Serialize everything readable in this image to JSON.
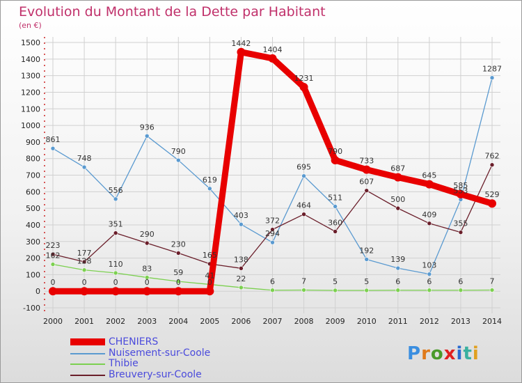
{
  "header": {
    "title": "Evolution du Montant de la Dette par Habitant",
    "unit": "(en €)"
  },
  "logo": {
    "text": "Proxiti",
    "letter_colors": [
      "#3a8ee0",
      "#e07a1a",
      "#4a9a2a",
      "#e02020",
      "#2a6ad0",
      "#3ab0a0",
      "#e0a020"
    ]
  },
  "chart_data": {
    "type": "line",
    "x": [
      "2000",
      "2001",
      "2002",
      "2003",
      "2004",
      "2005",
      "2006",
      "2007",
      "2008",
      "2009",
      "2010",
      "2011",
      "2012",
      "2013",
      "2014"
    ],
    "ylim": [
      -100,
      1500
    ],
    "yticks": [
      -100,
      0,
      100,
      200,
      300,
      400,
      500,
      600,
      700,
      800,
      900,
      1000,
      1100,
      1200,
      1300,
      1400,
      1500
    ],
    "grid": true,
    "legend_position": "bottom-left",
    "series": [
      {
        "name": "CHENIERS",
        "color": "#e80000",
        "values": [
          0,
          0,
          0,
          0,
          0,
          0,
          1442,
          1404,
          1231,
          790,
          733,
          687,
          645,
          585,
          529
        ]
      },
      {
        "name": "Nuisement-sur-Coole",
        "color": "#5a9ad0",
        "values": [
          861,
          748,
          556,
          936,
          790,
          619,
          403,
          294,
          695,
          511,
          192,
          139,
          103,
          553,
          1287
        ]
      },
      {
        "name": "Thibie",
        "color": "#7cd050",
        "values": [
          162,
          128,
          110,
          83,
          59,
          41,
          22,
          6,
          7,
          5,
          5,
          6,
          6,
          6,
          7
        ]
      },
      {
        "name": "Breuvery-sur-Coole",
        "color": "#6a1e2a",
        "values": [
          223,
          177,
          351,
          290,
          230,
          165,
          138,
          372,
          464,
          360,
          607,
          500,
          409,
          355,
          762
        ]
      }
    ]
  }
}
